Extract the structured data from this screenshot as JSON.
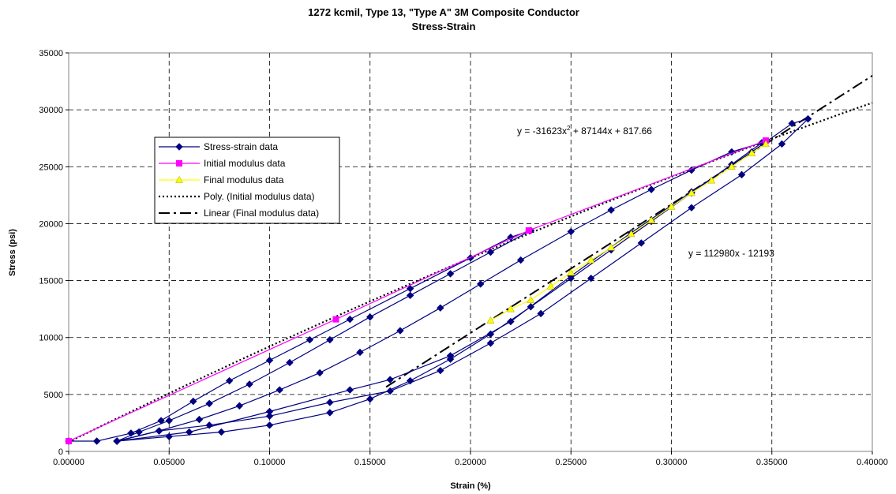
{
  "chart_data": {
    "type": "scatter",
    "title": "1272 kcmil, Type 13, \"Type A\" 3M Composite Conductor",
    "subtitle": "Stress-Strain",
    "xlabel": "Strain (%)",
    "ylabel": "Stress (psi)",
    "xlim": [
      0,
      0.4
    ],
    "ylim": [
      0,
      35000
    ],
    "xticks": [
      "0.00000",
      "0.05000",
      "0.10000",
      "0.15000",
      "0.20000",
      "0.25000",
      "0.30000",
      "0.35000",
      "0.40000"
    ],
    "yticks": [
      "0",
      "5000",
      "10000",
      "15000",
      "20000",
      "25000",
      "30000",
      "35000"
    ],
    "grid": "dashed",
    "legend_position": "left",
    "legend": [
      {
        "label": "Stress-strain data",
        "style": "line-diamond",
        "color": "#000080"
      },
      {
        "label": "Initial modulus data",
        "style": "line-square",
        "color": "#ff00ff"
      },
      {
        "label": "Final modulus data",
        "style": "line-triangle",
        "color": "#ffff00"
      },
      {
        "label": "Poly. (Initial modulus data)",
        "style": "dotted",
        "color": "#000000"
      },
      {
        "label": "Linear (Final modulus data)",
        "style": "dashdot",
        "color": "#000000"
      }
    ],
    "annotations": {
      "poly_eq_prefix": "y = -31623x",
      "poly_eq_sup": "2",
      "poly_eq_suffix": " + 87144x + 817.66",
      "linear_eq": "y = 112980x - 12193"
    },
    "series": [
      {
        "name": "Stress-strain data",
        "color": "#000080",
        "marker": "diamond",
        "segments": [
          [
            [
              0.0,
              900
            ],
            [
              0.014,
              900
            ],
            [
              0.031,
              1600
            ],
            [
              0.046,
              2700
            ],
            [
              0.062,
              4400
            ],
            [
              0.08,
              6200
            ],
            [
              0.1,
              8000
            ],
            [
              0.12,
              9800
            ],
            [
              0.14,
              11600
            ],
            [
              0.17,
              14300
            ],
            [
              0.2,
              17000
            ],
            [
              0.22,
              18800
            ],
            [
              0.23,
              19400
            ]
          ],
          [
            [
              0.23,
              19400
            ],
            [
              0.21,
              17500
            ],
            [
              0.19,
              15600
            ],
            [
              0.17,
              13700
            ],
            [
              0.15,
              11800
            ],
            [
              0.13,
              9800
            ],
            [
              0.11,
              7800
            ],
            [
              0.09,
              5900
            ],
            [
              0.07,
              4200
            ],
            [
              0.05,
              2700
            ],
            [
              0.035,
              1700
            ],
            [
              0.024,
              900
            ]
          ],
          [
            [
              0.024,
              900
            ],
            [
              0.045,
              1800
            ],
            [
              0.065,
              2800
            ],
            [
              0.085,
              4000
            ],
            [
              0.105,
              5400
            ],
            [
              0.125,
              6900
            ],
            [
              0.145,
              8700
            ],
            [
              0.165,
              10600
            ],
            [
              0.185,
              12600
            ],
            [
              0.205,
              14700
            ],
            [
              0.225,
              16800
            ],
            [
              0.25,
              19300
            ],
            [
              0.27,
              21200
            ],
            [
              0.29,
              23000
            ],
            [
              0.31,
              24700
            ],
            [
              0.33,
              26300
            ],
            [
              0.345,
              27100
            ]
          ],
          [
            [
              0.345,
              27100
            ],
            [
              0.33,
              25200
            ],
            [
              0.31,
              22700
            ],
            [
              0.29,
              20200
            ],
            [
              0.27,
              17700
            ],
            [
              0.25,
              15200
            ],
            [
              0.23,
              12700
            ],
            [
              0.21,
              10300
            ],
            [
              0.19,
              8100
            ],
            [
              0.17,
              6200
            ],
            [
              0.15,
              4600
            ],
            [
              0.13,
              3400
            ],
            [
              0.1,
              2300
            ],
            [
              0.076,
              1700
            ],
            [
              0.05,
              1300
            ],
            [
              0.024,
              900
            ]
          ],
          [
            [
              0.024,
              900
            ],
            [
              0.06,
              1700
            ],
            [
              0.1,
              3500
            ],
            [
              0.14,
              5400
            ],
            [
              0.16,
              6300
            ],
            [
              0.19,
              8400
            ],
            [
              0.22,
              11400
            ],
            [
              0.25,
              15400
            ],
            [
              0.28,
              19200
            ],
            [
              0.31,
              22800
            ],
            [
              0.34,
              26300
            ],
            [
              0.36,
              28800
            ],
            [
              0.368,
              29200
            ]
          ],
          [
            [
              0.368,
              29200
            ],
            [
              0.355,
              27000
            ],
            [
              0.335,
              24300
            ],
            [
              0.31,
              21400
            ],
            [
              0.285,
              18300
            ],
            [
              0.26,
              15200
            ],
            [
              0.235,
              12100
            ],
            [
              0.21,
              9500
            ],
            [
              0.185,
              7100
            ],
            [
              0.16,
              5300
            ],
            [
              0.13,
              4300
            ],
            [
              0.1,
              3100
            ],
            [
              0.07,
              2300
            ],
            [
              0.045,
              1800
            ],
            [
              0.024,
              900
            ]
          ]
        ]
      },
      {
        "name": "Initial modulus data",
        "color": "#ff00ff",
        "marker": "square",
        "points": [
          [
            0.0,
            900
          ],
          [
            0.133,
            11600
          ],
          [
            0.229,
            19400
          ],
          [
            0.347,
            27300
          ]
        ]
      },
      {
        "name": "Final modulus data",
        "color": "#ffff00",
        "marker": "triangle",
        "points": [
          [
            0.21,
            11500
          ],
          [
            0.22,
            12500
          ],
          [
            0.23,
            13300
          ],
          [
            0.24,
            14500
          ],
          [
            0.25,
            15700
          ],
          [
            0.26,
            16800
          ],
          [
            0.27,
            17900
          ],
          [
            0.28,
            19100
          ],
          [
            0.29,
            20300
          ],
          [
            0.3,
            21500
          ],
          [
            0.31,
            22700
          ],
          [
            0.32,
            23800
          ],
          [
            0.33,
            25000
          ],
          [
            0.34,
            26200
          ],
          [
            0.347,
            27000
          ]
        ]
      }
    ]
  }
}
